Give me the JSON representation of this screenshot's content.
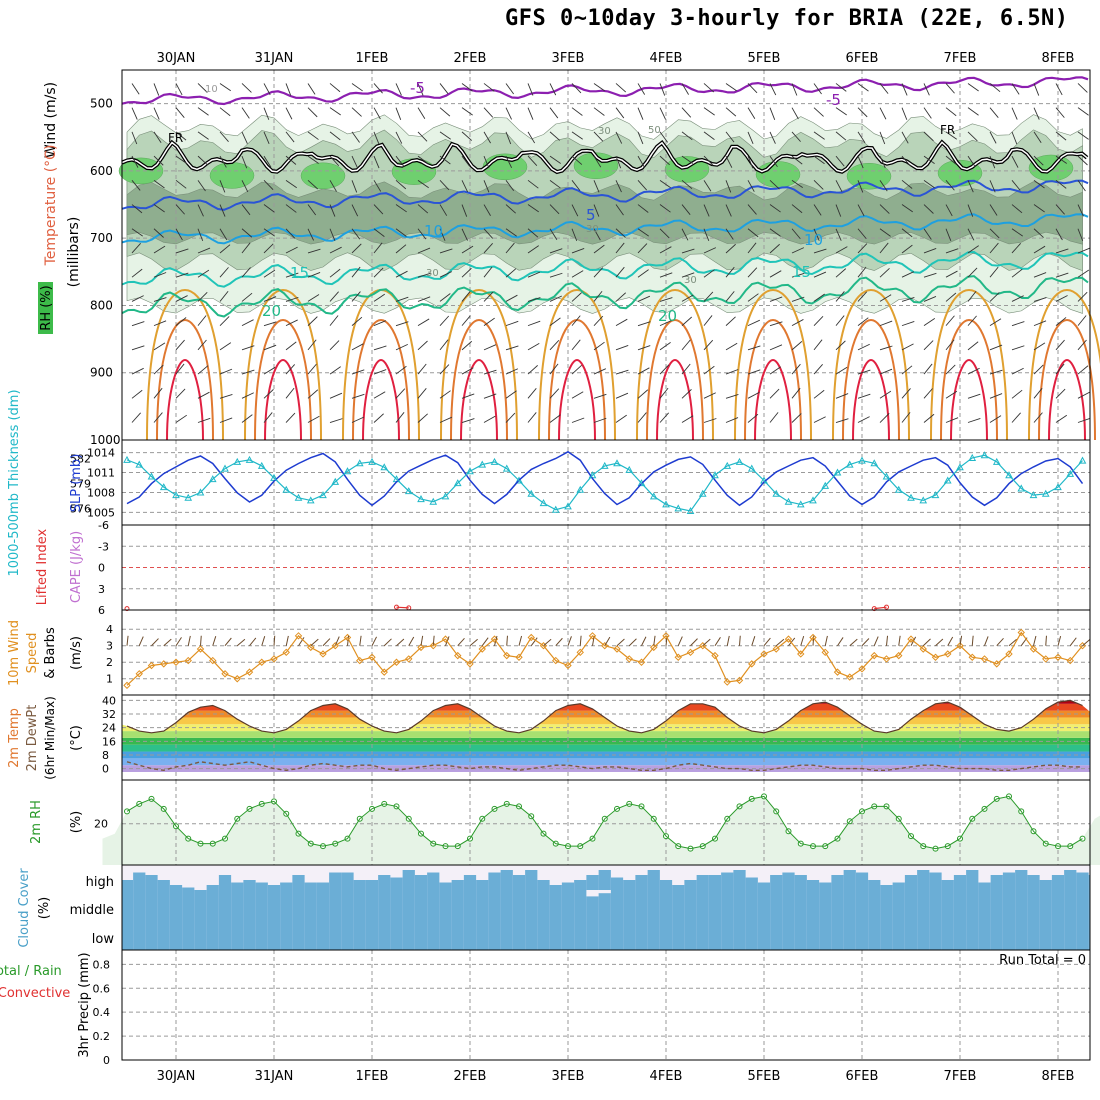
{
  "title": "GFS 0~10day 3-hourly for BRIA (22E, 6.5N)",
  "colors": {
    "grid": "#9a9a9a",
    "rh_light": "#e6f3e6",
    "rh_mid": "#b9d4b9",
    "rh_dark": "#8fae8f",
    "rh_green": "#6fcf6f",
    "freezing": "#000000",
    "temp_m5": "#8c1fb0",
    "temp_5": "#2a54d6",
    "temp_10": "#1ea0e0",
    "temp_15": "#20c4b8",
    "temp_20": "#22b888",
    "temp_warm1": "#e0a030",
    "temp_warm2": "#e07830",
    "temp_hot": "#e02040",
    "thickness": "#1e3cd0",
    "slp": "#20b8c8",
    "wind10": "#e09020",
    "rh2m": "#2a9a2a",
    "cloud": "#6baed6",
    "cloud_clear": "#f4f0f8",
    "li": "#e03030",
    "cape": "#c070d0"
  },
  "chart_data": [
    {
      "panel": "upper-air",
      "type": "heatmap",
      "x_tick_labels": [
        "30JAN",
        "31JAN",
        "1FEB",
        "2FEB",
        "3FEB",
        "4FEB",
        "5FEB",
        "6FEB",
        "7FEB",
        "8FEB"
      ],
      "y_tick_labels": [
        "500",
        "600",
        "700",
        "800",
        "900",
        "1000"
      ],
      "ylabel": "(millibars)",
      "legend_labels": [
        "Wind (m/s)",
        "Temperature (°C)",
        "RH (%)"
      ],
      "contour_labels": [
        "-5",
        "-5",
        "5",
        "10",
        "10",
        "15",
        "15",
        "20",
        "20",
        "FR",
        "FR",
        "30",
        "50",
        "30",
        "30",
        "30",
        "10"
      ],
      "isotherms_mb": {
        "minus5": 495,
        "plus5": 650,
        "plus10": 700,
        "plus15": 760,
        "plus20": 800,
        "freezing": 575
      }
    },
    {
      "panel": "thickness-slp",
      "type": "line",
      "ylabel_left": "1000-500mb Thickness (dm)",
      "ylabel_right": "SLP (mb)",
      "left_ticks": [
        "582",
        "579",
        "576"
      ],
      "right_ticks": [
        "1014",
        "1011",
        "1008",
        "1005"
      ],
      "series": [
        {
          "name": "thickness",
          "values": [
            579.2,
            577.8,
            576.6,
            577.4,
            579.0,
            580.2,
            581.0,
            581.8,
            582.3,
            581.4,
            579.6,
            577.9,
            576.8,
            577.6,
            579.3,
            580.6,
            581.4,
            582.1,
            582.6,
            581.6,
            579.5,
            577.6,
            576.4,
            577.5,
            579.2,
            580.5,
            581.2,
            581.9,
            582.4,
            581.5,
            579.4,
            577.7,
            576.6,
            577.7,
            579.4,
            580.7,
            581.4,
            582.0,
            582.8,
            581.8,
            579.6,
            577.8,
            576.5,
            577.3,
            579.0,
            580.4,
            581.2,
            581.9,
            582.2,
            581.3,
            579.4,
            577.6,
            576.4,
            577.4,
            579.2,
            580.4,
            581.1,
            581.8,
            582.1,
            581.1,
            579.3,
            577.5,
            576.5,
            577.4,
            579.2,
            580.4,
            581.1,
            581.8,
            582.1,
            581.2,
            579.1,
            577.4,
            576.4,
            577.3,
            579.0,
            580.2,
            581.0,
            581.7,
            582.0,
            581.0,
            579.0,
            577.1,
            575.8,
            577.2,
            579.0,
            580.4
          ]
        },
        {
          "name": "SLP",
          "values": [
            1011.5,
            1012.6,
            1012.9,
            1012.2,
            1010.4,
            1008.8,
            1007.6,
            1007.2,
            1008.0,
            1010.0,
            1011.6,
            1012.6,
            1012.9,
            1012.0,
            1010.2,
            1008.4,
            1007.2,
            1006.8,
            1007.6,
            1009.6,
            1011.2,
            1012.4,
            1012.6,
            1011.8,
            1010.0,
            1008.2,
            1007.0,
            1006.6,
            1007.4,
            1009.4,
            1011.2,
            1012.2,
            1012.6,
            1011.6,
            1009.8,
            1007.8,
            1006.4,
            1005.4,
            1005.9,
            1008.4,
            1010.6,
            1012.0,
            1012.4,
            1011.4,
            1009.4,
            1007.4,
            1006.2,
            1005.6,
            1005.2,
            1007.8,
            1010.6,
            1012.0,
            1012.6,
            1011.6,
            1009.8,
            1007.8,
            1006.6,
            1006.2,
            1006.8,
            1009.0,
            1011.0,
            1012.2,
            1012.8,
            1012.4,
            1010.4,
            1008.4,
            1007.2,
            1006.8,
            1007.6,
            1009.8,
            1011.8,
            1013.2,
            1013.6,
            1012.6,
            1010.6,
            1008.6,
            1007.6,
            1007.8,
            1008.8,
            1010.8,
            1012.8,
            1014.4,
            1014.0,
            1012.8,
            1011.2,
            1010.2
          ]
        }
      ]
    },
    {
      "panel": "instability",
      "type": "line",
      "ylabel_left": "Lifted Index",
      "ylabel_right": "CAPE (J/kg)",
      "y_ticks": [
        "-6",
        "-3",
        "0",
        "3",
        "6"
      ],
      "series": [
        {
          "name": "Lifted Index",
          "values": [
            5.2,
            5.2,
            5.8,
            null,
            null,
            null,
            null,
            null,
            null,
            null,
            null,
            null,
            null,
            null,
            null,
            null,
            null,
            null,
            null,
            null,
            null,
            null,
            null,
            null,
            5.6,
            5.7,
            null,
            null,
            null,
            null,
            null,
            null,
            null,
            null,
            null,
            null,
            null,
            null,
            null,
            null,
            null,
            null,
            null,
            null,
            null,
            null,
            null,
            null,
            null,
            null,
            null,
            null,
            null,
            null,
            null,
            null,
            null,
            null,
            null,
            null,
            null,
            null,
            null,
            5.8,
            5.6,
            null,
            null,
            null,
            null,
            null,
            null,
            null,
            null,
            null,
            null,
            null,
            null,
            null,
            null,
            null,
            null,
            null,
            null,
            null,
            null,
            null,
            null,
            null
          ]
        }
      ]
    },
    {
      "panel": "wind10m",
      "type": "line",
      "ylabel": "10m Wind Speed & Barbs (m/s)",
      "y_ticks": [
        "4",
        "3",
        "2",
        "1"
      ],
      "series": [
        {
          "name": "10m Wind Speed",
          "values": [
            1.0,
            0.6,
            0.6,
            1.3,
            1.8,
            1.9,
            2.0,
            2.1,
            2.8,
            2.1,
            1.3,
            1.0,
            1.4,
            2.0,
            2.2,
            2.6,
            3.6,
            2.9,
            2.5,
            3.0,
            3.5,
            2.1,
            2.3,
            1.4,
            2.0,
            2.2,
            2.9,
            3.0,
            3.4,
            2.4,
            1.9,
            2.8,
            3.4,
            2.4,
            2.3,
            3.5,
            3.0,
            2.1,
            1.8,
            2.6,
            3.6,
            3.0,
            2.8,
            2.2,
            2.0,
            2.9,
            3.6,
            2.3,
            2.6,
            3.0,
            2.4,
            0.8,
            0.9,
            1.9,
            2.5,
            2.8,
            3.4,
            2.5,
            3.5,
            2.6,
            1.4,
            1.1,
            1.6,
            2.4,
            2.2,
            2.4,
            3.4,
            2.8,
            2.3,
            2.5,
            3.0,
            2.3,
            2.2,
            1.9,
            2.5,
            3.8,
            2.8,
            2.2,
            2.3,
            2.1,
            3.0,
            4.5,
            3.2,
            3.0,
            2.4,
            2.6,
            2.5,
            2.4,
            2.2,
            3.0
          ]
        }
      ]
    },
    {
      "panel": "temperature2m",
      "type": "area",
      "ylabel": "2m Temp 2m DewPt (6hr Min/Max) (°C)",
      "y_ticks": [
        "40",
        "32",
        "24",
        "16",
        "8",
        "0"
      ],
      "series": [
        {
          "name": "2m Temp",
          "values": [
            29,
            27,
            25,
            22,
            21,
            22,
            27,
            33,
            36,
            37,
            34,
            29,
            25,
            22,
            21,
            23,
            28,
            34,
            37,
            38,
            35,
            29,
            25,
            22,
            21,
            23,
            28,
            34,
            37,
            38,
            35,
            30,
            25,
            22,
            21,
            23,
            28,
            34,
            37,
            38,
            35,
            30,
            25,
            22,
            21,
            23,
            28,
            34,
            38,
            38,
            36,
            30,
            25,
            22,
            21,
            23,
            28,
            34,
            38,
            39,
            36,
            31,
            26,
            22,
            21,
            23,
            29,
            34,
            38,
            39,
            36,
            31,
            26,
            23,
            22,
            24,
            29,
            35,
            39,
            40,
            37,
            31,
            26,
            23,
            22
          ]
        },
        {
          "name": "2m DewPt",
          "values": [
            3,
            5,
            4,
            2,
            0,
            -1,
            1,
            2,
            4,
            3,
            2,
            3,
            4,
            2,
            0,
            -1,
            0,
            2,
            3,
            2,
            1,
            2,
            2,
            0,
            -1,
            0,
            1,
            2,
            2,
            1,
            0,
            1,
            1,
            0,
            -1,
            0,
            1,
            2,
            2,
            1,
            0,
            1,
            1,
            0,
            -1,
            -1,
            0,
            2,
            3,
            2,
            1,
            0,
            0,
            -1,
            -1,
            0,
            1,
            2,
            2,
            1,
            0,
            0,
            0,
            -1,
            -1,
            0,
            1,
            2,
            2,
            1,
            0,
            0,
            0,
            -1,
            -1,
            0,
            1,
            2,
            2,
            1,
            1,
            1,
            0,
            0,
            1
          ]
        }
      ]
    },
    {
      "panel": "rh2m",
      "type": "area",
      "ylabel": "2m RH (%)",
      "y_ticks": [
        "20"
      ],
      "series": [
        {
          "name": "2m RH",
          "values": [
            14,
            16,
            25,
            28,
            30,
            26,
            19,
            14,
            12,
            12,
            14,
            22,
            26,
            28,
            29,
            24,
            16,
            12,
            11,
            12,
            14,
            22,
            26,
            28,
            27,
            22,
            16,
            12,
            11,
            11,
            14,
            22,
            26,
            28,
            27,
            23,
            16,
            12,
            11,
            11,
            14,
            22,
            26,
            28,
            27,
            22,
            15,
            11,
            10,
            11,
            14,
            22,
            27,
            30,
            31,
            25,
            17,
            12,
            11,
            11,
            14,
            21,
            25,
            27,
            27,
            22,
            15,
            11,
            10,
            11,
            14,
            22,
            26,
            30,
            31,
            25,
            17,
            12,
            11,
            11,
            14,
            22,
            25,
            27,
            27,
            22,
            16,
            12,
            11,
            11
          ]
        }
      ]
    },
    {
      "panel": "cloud-cover",
      "type": "bar",
      "ylabel": "Cloud Cover (%)",
      "y_tick_labels": [
        "high",
        "middle",
        "low"
      ],
      "layers": [
        {
          "name": "high",
          "values": [
            30,
            70,
            40,
            70,
            60,
            40,
            20,
            10,
            0,
            20,
            60,
            30,
            40,
            30,
            20,
            30,
            60,
            30,
            30,
            70,
            70,
            40,
            40,
            60,
            50,
            80,
            60,
            70,
            30,
            40,
            60,
            40,
            70,
            80,
            60,
            80,
            40,
            20,
            30,
            40,
            60,
            80,
            50,
            40,
            60,
            80,
            40,
            20,
            40,
            60,
            60,
            70,
            80,
            50,
            30,
            60,
            70,
            60,
            40,
            30,
            60,
            80,
            70,
            40,
            20,
            30,
            60,
            80,
            70,
            40,
            60,
            80,
            30,
            60,
            70,
            80,
            60,
            40,
            60,
            80,
            70,
            60,
            30,
            40,
            80
          ]
        },
        {
          "name": "middle",
          "values": [
            100,
            100,
            100,
            100,
            100,
            100,
            100,
            100,
            100,
            100,
            100,
            100,
            100,
            100,
            100,
            100,
            100,
            100,
            100,
            100,
            100,
            100,
            100,
            100,
            100,
            100,
            100,
            100,
            100,
            100,
            100,
            100,
            100,
            100,
            100,
            100,
            100,
            100,
            100,
            100,
            80,
            90,
            100,
            100,
            100,
            100,
            100,
            100,
            100,
            100,
            100,
            100,
            100,
            100,
            100,
            100,
            100,
            100,
            100,
            100,
            100,
            100,
            100,
            100,
            100,
            100,
            100,
            100,
            100,
            100,
            100,
            100,
            100,
            100,
            100,
            100,
            100,
            100,
            100,
            100,
            100,
            100,
            100,
            100,
            100
          ]
        },
        {
          "name": "low",
          "values": [
            100,
            100,
            100,
            100,
            100,
            100,
            100,
            100,
            100,
            100,
            100,
            100,
            100,
            100,
            100,
            100,
            100,
            100,
            100,
            100,
            100,
            100,
            100,
            100,
            100,
            100,
            100,
            100,
            100,
            100,
            100,
            100,
            100,
            100,
            100,
            100,
            100,
            100,
            100,
            100,
            100,
            100,
            100,
            100,
            100,
            100,
            100,
            100,
            100,
            100,
            100,
            100,
            100,
            100,
            100,
            100,
            100,
            100,
            100,
            100,
            100,
            100,
            100,
            100,
            100,
            100,
            100,
            100,
            100,
            100,
            100,
            100,
            100,
            100,
            100,
            100,
            100,
            100,
            100,
            100,
            100,
            100,
            100,
            100,
            100
          ]
        }
      ]
    },
    {
      "panel": "precipitation",
      "type": "bar",
      "ylabel": "3hr Precip (mm)",
      "legend_labels": [
        "Total / Rain",
        "Convective"
      ],
      "y_ticks": [
        "0.8",
        "0.6",
        "0.4",
        "0.2",
        "0"
      ],
      "annotation": "Run Total = 0",
      "values": [],
      "ylim": [
        0,
        0.9
      ]
    }
  ]
}
